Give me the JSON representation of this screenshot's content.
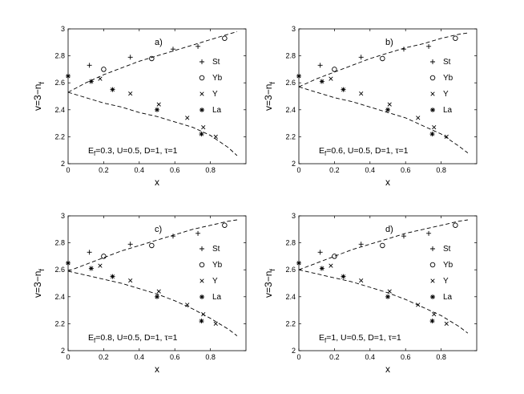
{
  "chart_data": [
    {
      "type": "scatter",
      "panel_label": "a)",
      "xlabel": "x",
      "ylabel_main": "v=3−n",
      "ylabel_sub": "f",
      "xlim": [
        0,
        1
      ],
      "ylim": [
        2,
        3
      ],
      "xticks": [
        "0",
        "0.2",
        "0.4",
        "0.6",
        "0.8"
      ],
      "yticks": [
        "2",
        "2.2",
        "2.4",
        "2.6",
        "2.8",
        "3"
      ],
      "xtick_values": [
        0,
        0.2,
        0.4,
        0.6,
        0.8
      ],
      "ytick_values": [
        2,
        2.2,
        2.4,
        2.6,
        2.8,
        3
      ],
      "legend_position": "right",
      "annotation_parts": [
        "E",
        "f",
        "=0.3, U=0.5, D=1, ",
        "τ",
        "=1"
      ],
      "series": [
        {
          "name": "St",
          "marker": "plus",
          "x": [
            0.12,
            0.35,
            0.59,
            0.73
          ],
          "y": [
            2.73,
            2.79,
            2.85,
            2.87
          ]
        },
        {
          "name": "Yb",
          "marker": "circle",
          "x": [
            0.2,
            0.47,
            0.88
          ],
          "y": [
            2.7,
            2.78,
            2.93
          ]
        },
        {
          "name": "Y",
          "marker": "cross",
          "x": [
            0.18,
            0.35,
            0.51,
            0.67,
            0.76,
            0.83
          ],
          "y": [
            2.63,
            2.52,
            2.44,
            2.34,
            2.27,
            2.2
          ]
        },
        {
          "name": "La",
          "marker": "star",
          "x": [
            0,
            0.13,
            0.25,
            0.5,
            0.75
          ],
          "y": [
            2.65,
            2.61,
            2.55,
            2.4,
            2.22
          ]
        }
      ],
      "upper_curve": {
        "x": [
          0,
          0.1,
          0.2,
          0.3,
          0.4,
          0.5,
          0.6,
          0.7,
          0.8,
          0.9,
          0.95
        ],
        "y": [
          2.53,
          2.6,
          2.66,
          2.71,
          2.76,
          2.8,
          2.84,
          2.88,
          2.92,
          2.96,
          2.98
        ]
      },
      "lower_curve": {
        "x": [
          0,
          0.1,
          0.2,
          0.3,
          0.4,
          0.5,
          0.6,
          0.7,
          0.8,
          0.9,
          0.95
        ],
        "y": [
          2.53,
          2.49,
          2.45,
          2.42,
          2.38,
          2.35,
          2.31,
          2.27,
          2.21,
          2.12,
          2.06
        ]
      }
    },
    {
      "type": "scatter",
      "panel_label": "b)",
      "xlabel": "x",
      "ylabel_main": "v=3−n",
      "ylabel_sub": "f",
      "xlim": [
        0,
        1
      ],
      "ylim": [
        2,
        3
      ],
      "xticks": [
        "0",
        "0.2",
        "0.4",
        "0.6",
        "0.8"
      ],
      "yticks": [
        "2",
        "2.2",
        "2.4",
        "2.6",
        "2.8",
        "3"
      ],
      "xtick_values": [
        0,
        0.2,
        0.4,
        0.6,
        0.8
      ],
      "ytick_values": [
        2,
        2.2,
        2.4,
        2.6,
        2.8,
        3
      ],
      "legend_position": "right",
      "annotation_parts": [
        "E",
        "f",
        "=0.6, U=0.5, D=1, ",
        "τ",
        "=1"
      ],
      "series": [
        {
          "name": "St",
          "marker": "plus",
          "x": [
            0.12,
            0.35,
            0.59,
            0.73
          ],
          "y": [
            2.73,
            2.79,
            2.85,
            2.87
          ]
        },
        {
          "name": "Yb",
          "marker": "circle",
          "x": [
            0.2,
            0.47,
            0.88
          ],
          "y": [
            2.7,
            2.78,
            2.93
          ]
        },
        {
          "name": "Y",
          "marker": "cross",
          "x": [
            0.18,
            0.35,
            0.51,
            0.67,
            0.76,
            0.83
          ],
          "y": [
            2.63,
            2.52,
            2.44,
            2.34,
            2.27,
            2.2
          ]
        },
        {
          "name": "La",
          "marker": "star",
          "x": [
            0,
            0.13,
            0.25,
            0.5,
            0.75
          ],
          "y": [
            2.65,
            2.61,
            2.55,
            2.4,
            2.22
          ]
        }
      ],
      "upper_curve": {
        "x": [
          0,
          0.1,
          0.2,
          0.3,
          0.4,
          0.5,
          0.6,
          0.7,
          0.8,
          0.9,
          0.95
        ],
        "y": [
          2.57,
          2.63,
          2.68,
          2.73,
          2.78,
          2.82,
          2.86,
          2.89,
          2.93,
          2.96,
          2.97
        ]
      },
      "lower_curve": {
        "x": [
          0,
          0.1,
          0.2,
          0.3,
          0.4,
          0.5,
          0.6,
          0.7,
          0.8,
          0.9,
          0.95
        ],
        "y": [
          2.57,
          2.53,
          2.49,
          2.46,
          2.42,
          2.38,
          2.34,
          2.28,
          2.22,
          2.13,
          2.08
        ]
      }
    },
    {
      "type": "scatter",
      "panel_label": "c)",
      "xlabel": "x",
      "ylabel_main": "v=3−n",
      "ylabel_sub": "f",
      "xlim": [
        0,
        1
      ],
      "ylim": [
        2,
        3
      ],
      "xticks": [
        "0",
        "0.2",
        "0.4",
        "0.6",
        "0.8"
      ],
      "yticks": [
        "2",
        "2.2",
        "2.4",
        "2.6",
        "2.8",
        "3"
      ],
      "xtick_values": [
        0,
        0.2,
        0.4,
        0.6,
        0.8
      ],
      "ytick_values": [
        2,
        2.2,
        2.4,
        2.6,
        2.8,
        3
      ],
      "legend_position": "right",
      "annotation_parts": [
        "E",
        "f",
        "=0.8, U=0.5, D=1, ",
        "τ",
        "=1"
      ],
      "series": [
        {
          "name": "St",
          "marker": "plus",
          "x": [
            0.12,
            0.35,
            0.59,
            0.73
          ],
          "y": [
            2.73,
            2.79,
            2.85,
            2.87
          ]
        },
        {
          "name": "Yb",
          "marker": "circle",
          "x": [
            0.2,
            0.47,
            0.88
          ],
          "y": [
            2.7,
            2.78,
            2.93
          ]
        },
        {
          "name": "Y",
          "marker": "cross",
          "x": [
            0.18,
            0.35,
            0.51,
            0.67,
            0.76,
            0.83
          ],
          "y": [
            2.63,
            2.52,
            2.44,
            2.34,
            2.27,
            2.2
          ]
        },
        {
          "name": "La",
          "marker": "star",
          "x": [
            0,
            0.13,
            0.25,
            0.5,
            0.75
          ],
          "y": [
            2.65,
            2.61,
            2.55,
            2.4,
            2.22
          ]
        }
      ],
      "upper_curve": {
        "x": [
          0,
          0.1,
          0.2,
          0.3,
          0.4,
          0.5,
          0.6,
          0.7,
          0.8,
          0.9,
          0.95
        ],
        "y": [
          2.59,
          2.64,
          2.69,
          2.74,
          2.78,
          2.82,
          2.86,
          2.9,
          2.93,
          2.96,
          2.97
        ]
      },
      "lower_curve": {
        "x": [
          0,
          0.1,
          0.2,
          0.3,
          0.4,
          0.5,
          0.6,
          0.7,
          0.8,
          0.9,
          0.95
        ],
        "y": [
          2.59,
          2.56,
          2.53,
          2.5,
          2.46,
          2.42,
          2.37,
          2.31,
          2.24,
          2.16,
          2.11
        ]
      }
    },
    {
      "type": "scatter",
      "panel_label": "d)",
      "xlabel": "x",
      "ylabel_main": "v=3−n",
      "ylabel_sub": "f",
      "xlim": [
        0,
        1
      ],
      "ylim": [
        2,
        3
      ],
      "xticks": [
        "0",
        "0.2",
        "0.4",
        "0.6",
        "0.8"
      ],
      "yticks": [
        "2",
        "2.2",
        "2.4",
        "2.6",
        "2.8",
        "3"
      ],
      "xtick_values": [
        0,
        0.2,
        0.4,
        0.6,
        0.8
      ],
      "ytick_values": [
        2,
        2.2,
        2.4,
        2.6,
        2.8,
        3
      ],
      "legend_position": "right",
      "annotation_parts": [
        "E",
        "f",
        "=1, U=0.5, D=1, ",
        "τ",
        "=1"
      ],
      "series": [
        {
          "name": "St",
          "marker": "plus",
          "x": [
            0.12,
            0.35,
            0.59,
            0.73
          ],
          "y": [
            2.73,
            2.79,
            2.85,
            2.87
          ]
        },
        {
          "name": "Yb",
          "marker": "circle",
          "x": [
            0.2,
            0.47,
            0.88
          ],
          "y": [
            2.7,
            2.78,
            2.93
          ]
        },
        {
          "name": "Y",
          "marker": "cross",
          "x": [
            0.18,
            0.35,
            0.51,
            0.67,
            0.76,
            0.83
          ],
          "y": [
            2.63,
            2.52,
            2.44,
            2.34,
            2.27,
            2.2
          ]
        },
        {
          "name": "La",
          "marker": "star",
          "x": [
            0,
            0.13,
            0.25,
            0.5,
            0.75
          ],
          "y": [
            2.65,
            2.61,
            2.55,
            2.4,
            2.22
          ]
        }
      ],
      "upper_curve": {
        "x": [
          0,
          0.1,
          0.2,
          0.3,
          0.4,
          0.5,
          0.6,
          0.7,
          0.8,
          0.9,
          0.95
        ],
        "y": [
          2.6,
          2.65,
          2.7,
          2.75,
          2.79,
          2.83,
          2.87,
          2.9,
          2.93,
          2.96,
          2.97
        ]
      },
      "lower_curve": {
        "x": [
          0,
          0.1,
          0.2,
          0.3,
          0.4,
          0.5,
          0.6,
          0.7,
          0.8,
          0.9,
          0.95
        ],
        "y": [
          2.6,
          2.57,
          2.54,
          2.51,
          2.47,
          2.43,
          2.38,
          2.32,
          2.26,
          2.18,
          2.13
        ]
      }
    }
  ]
}
